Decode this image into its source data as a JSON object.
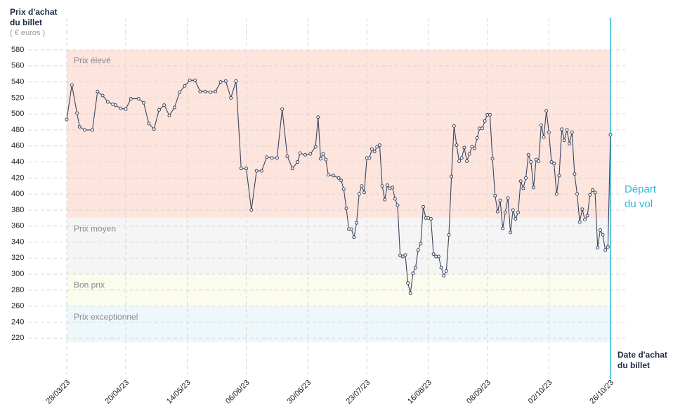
{
  "chart_data": {
    "type": "line",
    "y_axis_title": [
      "Prix d'achat",
      "du billet"
    ],
    "y_axis_unit": "( € euros )",
    "x_axis_title": [
      "Date d'achat",
      "du billet"
    ],
    "departure_label": [
      "Départ",
      "du vol"
    ],
    "departure_date": "26/10/23",
    "departure_color": "#2bb7d9",
    "ylim": [
      215,
      580
    ],
    "yticks": [
      220,
      240,
      260,
      280,
      300,
      320,
      340,
      360,
      380,
      400,
      420,
      440,
      460,
      480,
      500,
      520,
      540,
      560,
      580
    ],
    "xlim": [
      "28/03/23",
      "26/10/23"
    ],
    "xticks": [
      "28/03/23",
      "20/04/23",
      "14/05/23",
      "06/06/23",
      "30/06/23",
      "23/07/23",
      "16/08/23",
      "08/09/23",
      "02/10/23",
      "26/10/23"
    ],
    "grid": true,
    "bands": [
      {
        "label": "Prix élevé",
        "from": 370,
        "to": 580,
        "color": "#fde4dd"
      },
      {
        "label": "Prix moyen",
        "from": 300,
        "to": 370,
        "color": "#f5f5f5"
      },
      {
        "label": "Bon prix",
        "from": 260,
        "to": 300,
        "color": "#fbfcee"
      },
      {
        "label": "Prix exceptionnel",
        "from": 215,
        "to": 260,
        "color": "#eef8fb"
      }
    ],
    "x": [
      "28/03/23",
      "30/03/23",
      "01/04/23",
      "02/04/23",
      "04/04/23",
      "07/04/23",
      "09/04/23",
      "11/04/23",
      "13/04/23",
      "15/04/23",
      "16/04/23",
      "18/04/23",
      "20/04/23",
      "22/04/23",
      "25/04/23",
      "27/04/23",
      "29/04/23",
      "01/05/23",
      "03/05/23",
      "05/05/23",
      "07/05/23",
      "09/05/23",
      "11/05/23",
      "13/05/23",
      "15/05/23",
      "17/05/23",
      "19/05/23",
      "21/05/23",
      "23/05/23",
      "25/05/23",
      "27/05/23",
      "29/05/23",
      "31/05/23",
      "02/06/23",
      "04/06/23",
      "06/06/23",
      "08/06/23",
      "10/06/23",
      "12/06/23",
      "14/06/23",
      "16/06/23",
      "18/06/23",
      "20/06/23",
      "22/06/23",
      "24/06/23",
      "26/06/23",
      "27/06/23",
      "29/06/23",
      "01/07/23",
      "03/07/23",
      "04/07/23",
      "05/07/23",
      "06/07/23",
      "07/07/23",
      "08/07/23",
      "10/07/23",
      "12/07/23",
      "13/07/23",
      "14/07/23",
      "15/07/23",
      "16/07/23",
      "17/07/23",
      "18/07/23",
      "19/07/23",
      "20/07/23",
      "21/07/23",
      "22/07/23",
      "23/07/23",
      "24/07/23",
      "25/07/23",
      "26/07/23",
      "27/07/23",
      "28/07/23",
      "29/07/23",
      "30/07/23",
      "31/07/23",
      "01/08/23",
      "02/08/23",
      "03/08/23",
      "04/08/23",
      "05/08/23",
      "06/08/23",
      "07/08/23",
      "08/08/23",
      "09/08/23",
      "10/08/23",
      "11/08/23",
      "12/08/23",
      "13/08/23",
      "14/08/23",
      "15/08/23",
      "16/08/23",
      "17/08/23",
      "18/08/23",
      "19/08/23",
      "20/08/23",
      "21/08/23",
      "22/08/23",
      "23/08/23",
      "24/08/23",
      "25/08/23",
      "26/08/23",
      "27/08/23",
      "28/08/23",
      "29/08/23",
      "30/08/23",
      "31/08/23",
      "01/09/23",
      "02/09/23",
      "03/09/23",
      "04/09/23",
      "05/09/23",
      "06/09/23",
      "07/09/23",
      "08/09/23",
      "09/09/23",
      "10/09/23",
      "11/09/23",
      "12/09/23",
      "13/09/23",
      "14/09/23",
      "15/09/23",
      "16/09/23",
      "17/09/23",
      "18/09/23",
      "19/09/23",
      "20/09/23",
      "21/09/23",
      "22/09/23",
      "23/09/23",
      "24/09/23",
      "25/09/23",
      "26/09/23",
      "27/09/23",
      "28/09/23",
      "29/09/23",
      "30/09/23",
      "01/10/23",
      "02/10/23",
      "03/10/23",
      "04/10/23",
      "05/10/23",
      "06/10/23",
      "07/10/23",
      "08/10/23",
      "09/10/23",
      "10/10/23",
      "11/10/23",
      "12/10/23",
      "13/10/23",
      "14/10/23",
      "15/10/23",
      "16/10/23",
      "17/10/23",
      "18/10/23",
      "19/10/23",
      "20/10/23",
      "21/10/23",
      "22/10/23",
      "23/10/23",
      "24/10/23",
      "25/10/23",
      "26/10/23"
    ],
    "series": [
      {
        "color": "#3a4660",
        "values": [
          493,
          536,
          501,
          484,
          480,
          480,
          528,
          523,
          515,
          512,
          511,
          507,
          506,
          519,
          519,
          514,
          488,
          481,
          505,
          511,
          498,
          508,
          527,
          535,
          542,
          542,
          528,
          528,
          527,
          528,
          540,
          541,
          520,
          541,
          432,
          432,
          380,
          429,
          429,
          446,
          445,
          445,
          506,
          447,
          432,
          440,
          451,
          449,
          450,
          459,
          496,
          444,
          450,
          443,
          424,
          423,
          420,
          417,
          406,
          382,
          356,
          356,
          346,
          364,
          400,
          410,
          402,
          445,
          445,
          456,
          453,
          459,
          461,
          410,
          393,
          411,
          407,
          408,
          394,
          386,
          323,
          322,
          324,
          289,
          276,
          301,
          308,
          330,
          338,
          384,
          370,
          370,
          369,
          325,
          322,
          322,
          308,
          298,
          304,
          349,
          422,
          485,
          461,
          441,
          445,
          458,
          441,
          450,
          459,
          457,
          470,
          482,
          482,
          491,
          499,
          499,
          444,
          398,
          378,
          392,
          357,
          377,
          395,
          352,
          380,
          369,
          377,
          416,
          407,
          420,
          449,
          440,
          408,
          443,
          441,
          486,
          471,
          504,
          477,
          440,
          438,
          400,
          423,
          481,
          467,
          480,
          463,
          477,
          425,
          400,
          365,
          381,
          368,
          373,
          399,
          405,
          402,
          333,
          355,
          349,
          330,
          334,
          474
        ]
      }
    ]
  }
}
